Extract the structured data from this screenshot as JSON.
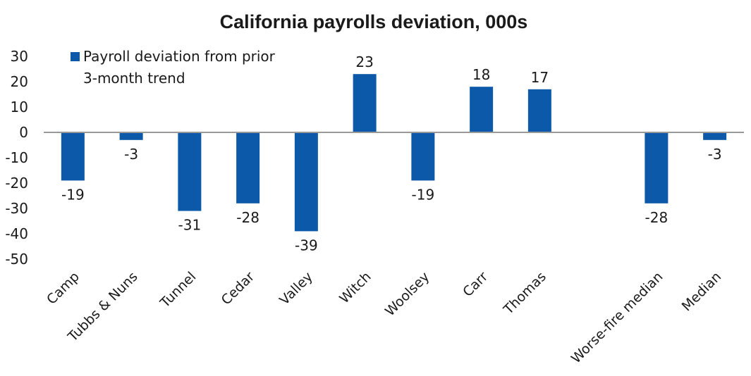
{
  "chart_data": {
    "type": "bar",
    "title": "California payrolls deviation, 000s",
    "xlabel": "",
    "ylabel": "",
    "ylim": [
      -50,
      30
    ],
    "yticks": [
      30,
      20,
      10,
      0,
      -10,
      -20,
      -30,
      -40,
      -50
    ],
    "grid": false,
    "legend_position": "top-left",
    "categories": [
      "Camp",
      "Tubbs & Nuns",
      "Tunnel",
      "Cedar",
      "Valley",
      "Witch",
      "Woolsey",
      "Carr",
      "Thomas",
      "",
      "Worse-fire median",
      "Median"
    ],
    "series": [
      {
        "name": "Payroll deviation from prior 3-month trend",
        "legend_lines": [
          "Payroll deviation from prior",
          "3-month trend"
        ],
        "color": "#0b59a8",
        "values": [
          -19,
          -3,
          -31,
          -28,
          -39,
          23,
          -19,
          18,
          17,
          null,
          -28,
          -3
        ],
        "data_labels": [
          "-19",
          "-3",
          "-31",
          "-28",
          "-39",
          "23",
          "-19",
          "18",
          "17",
          "",
          "-28",
          "-3"
        ]
      }
    ],
    "axis_color": "#999999"
  }
}
